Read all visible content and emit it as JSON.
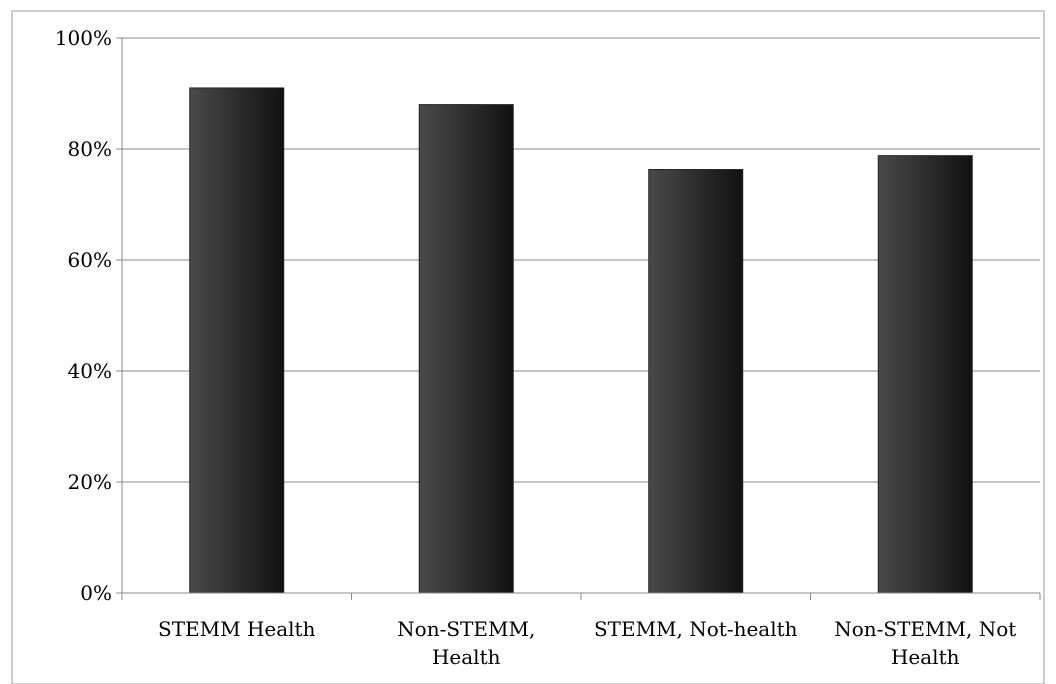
{
  "chart_data": {
    "type": "bar",
    "categories": [
      [
        "STEMM Health"
      ],
      [
        "Non-STEMM,",
        "Health"
      ],
      [
        "STEMM, Not-health"
      ],
      [
        "Non-STEMM, Not",
        "Health"
      ]
    ],
    "values": [
      91,
      88,
      76.3,
      78.8
    ],
    "yticks": [
      "0%",
      "20%",
      "40%",
      "60%",
      "80%",
      "100%"
    ],
    "ylim": [
      0,
      100
    ],
    "title": "",
    "xlabel": "",
    "ylabel": "",
    "grid": true,
    "bar_color_light": "#4a4a4a",
    "bar_color_dark": "#111111",
    "gridline_color": "#888888"
  }
}
